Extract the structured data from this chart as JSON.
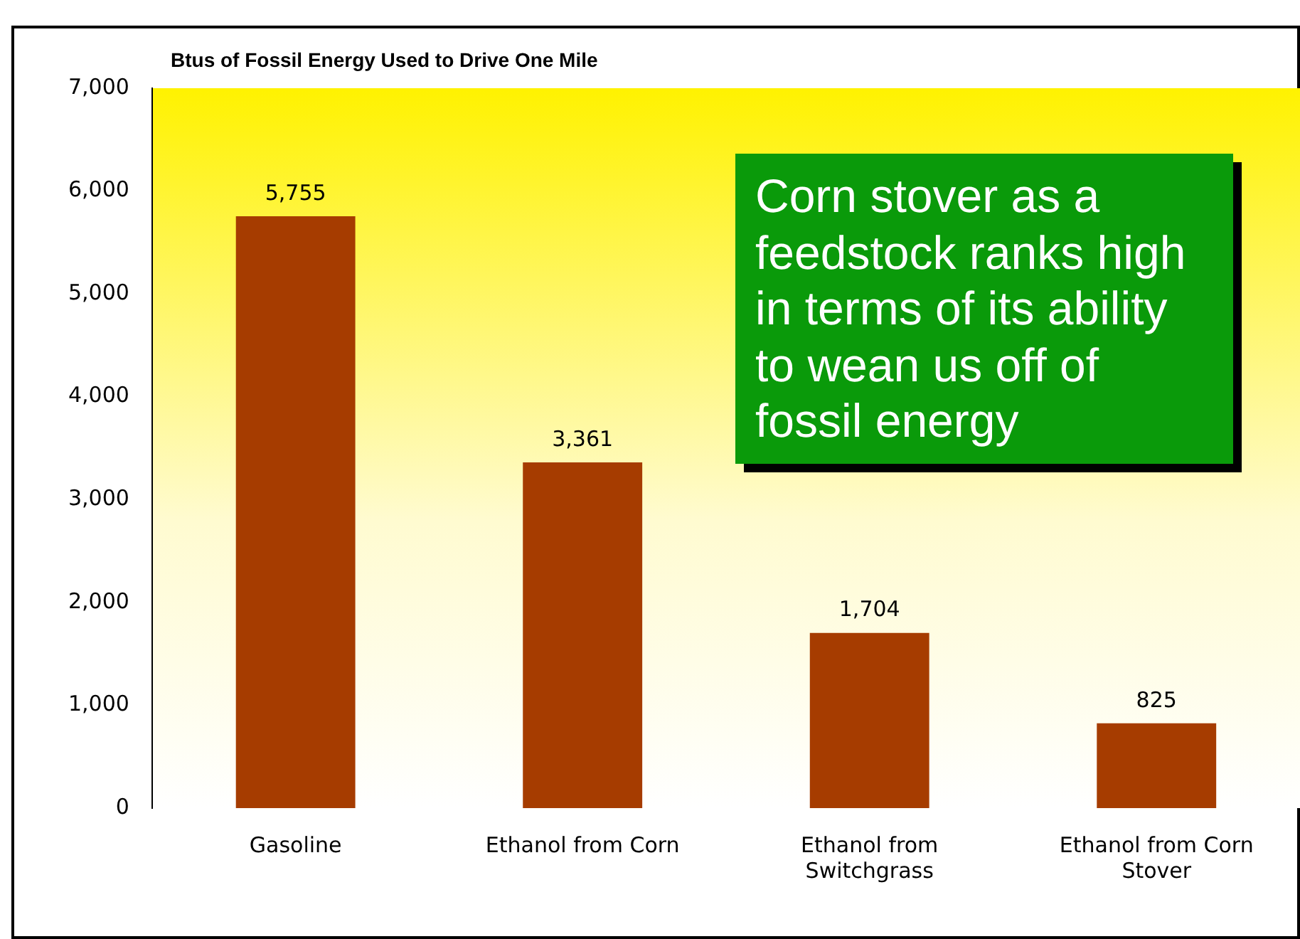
{
  "chart_data": {
    "type": "bar",
    "title": "Btus of Fossil Energy Used to Drive One Mile",
    "categories": [
      "Gasoline",
      "Ethanol from Corn",
      "Ethanol from Switchgrass",
      "Ethanol from Corn Stover"
    ],
    "values": [
      5755,
      3361,
      1704,
      825
    ],
    "color": "#a63c00",
    "value_labels": [
      "5,755",
      "3,361",
      "1,704",
      "825"
    ],
    "ylim": [
      0,
      7000
    ],
    "yticks": [
      0,
      {
        "value": 1000,
        "label": "1,000"
      },
      {
        "value": 2000,
        "label": "2,000"
      },
      {
        "value": 3000,
        "label": "3,000"
      },
      {
        "value": 4000,
        "label": "4,000"
      },
      {
        "value": 5000,
        "label": "5,000"
      },
      {
        "value": 6000,
        "label": "6,000"
      },
      {
        "value": 7000,
        "label": "7,000"
      }
    ],
    "grid": false,
    "legend": false,
    "annotations": [
      "Corn stover as a feedstock ranks high in terms of its ability to wean us off of fossil energy"
    ]
  }
}
